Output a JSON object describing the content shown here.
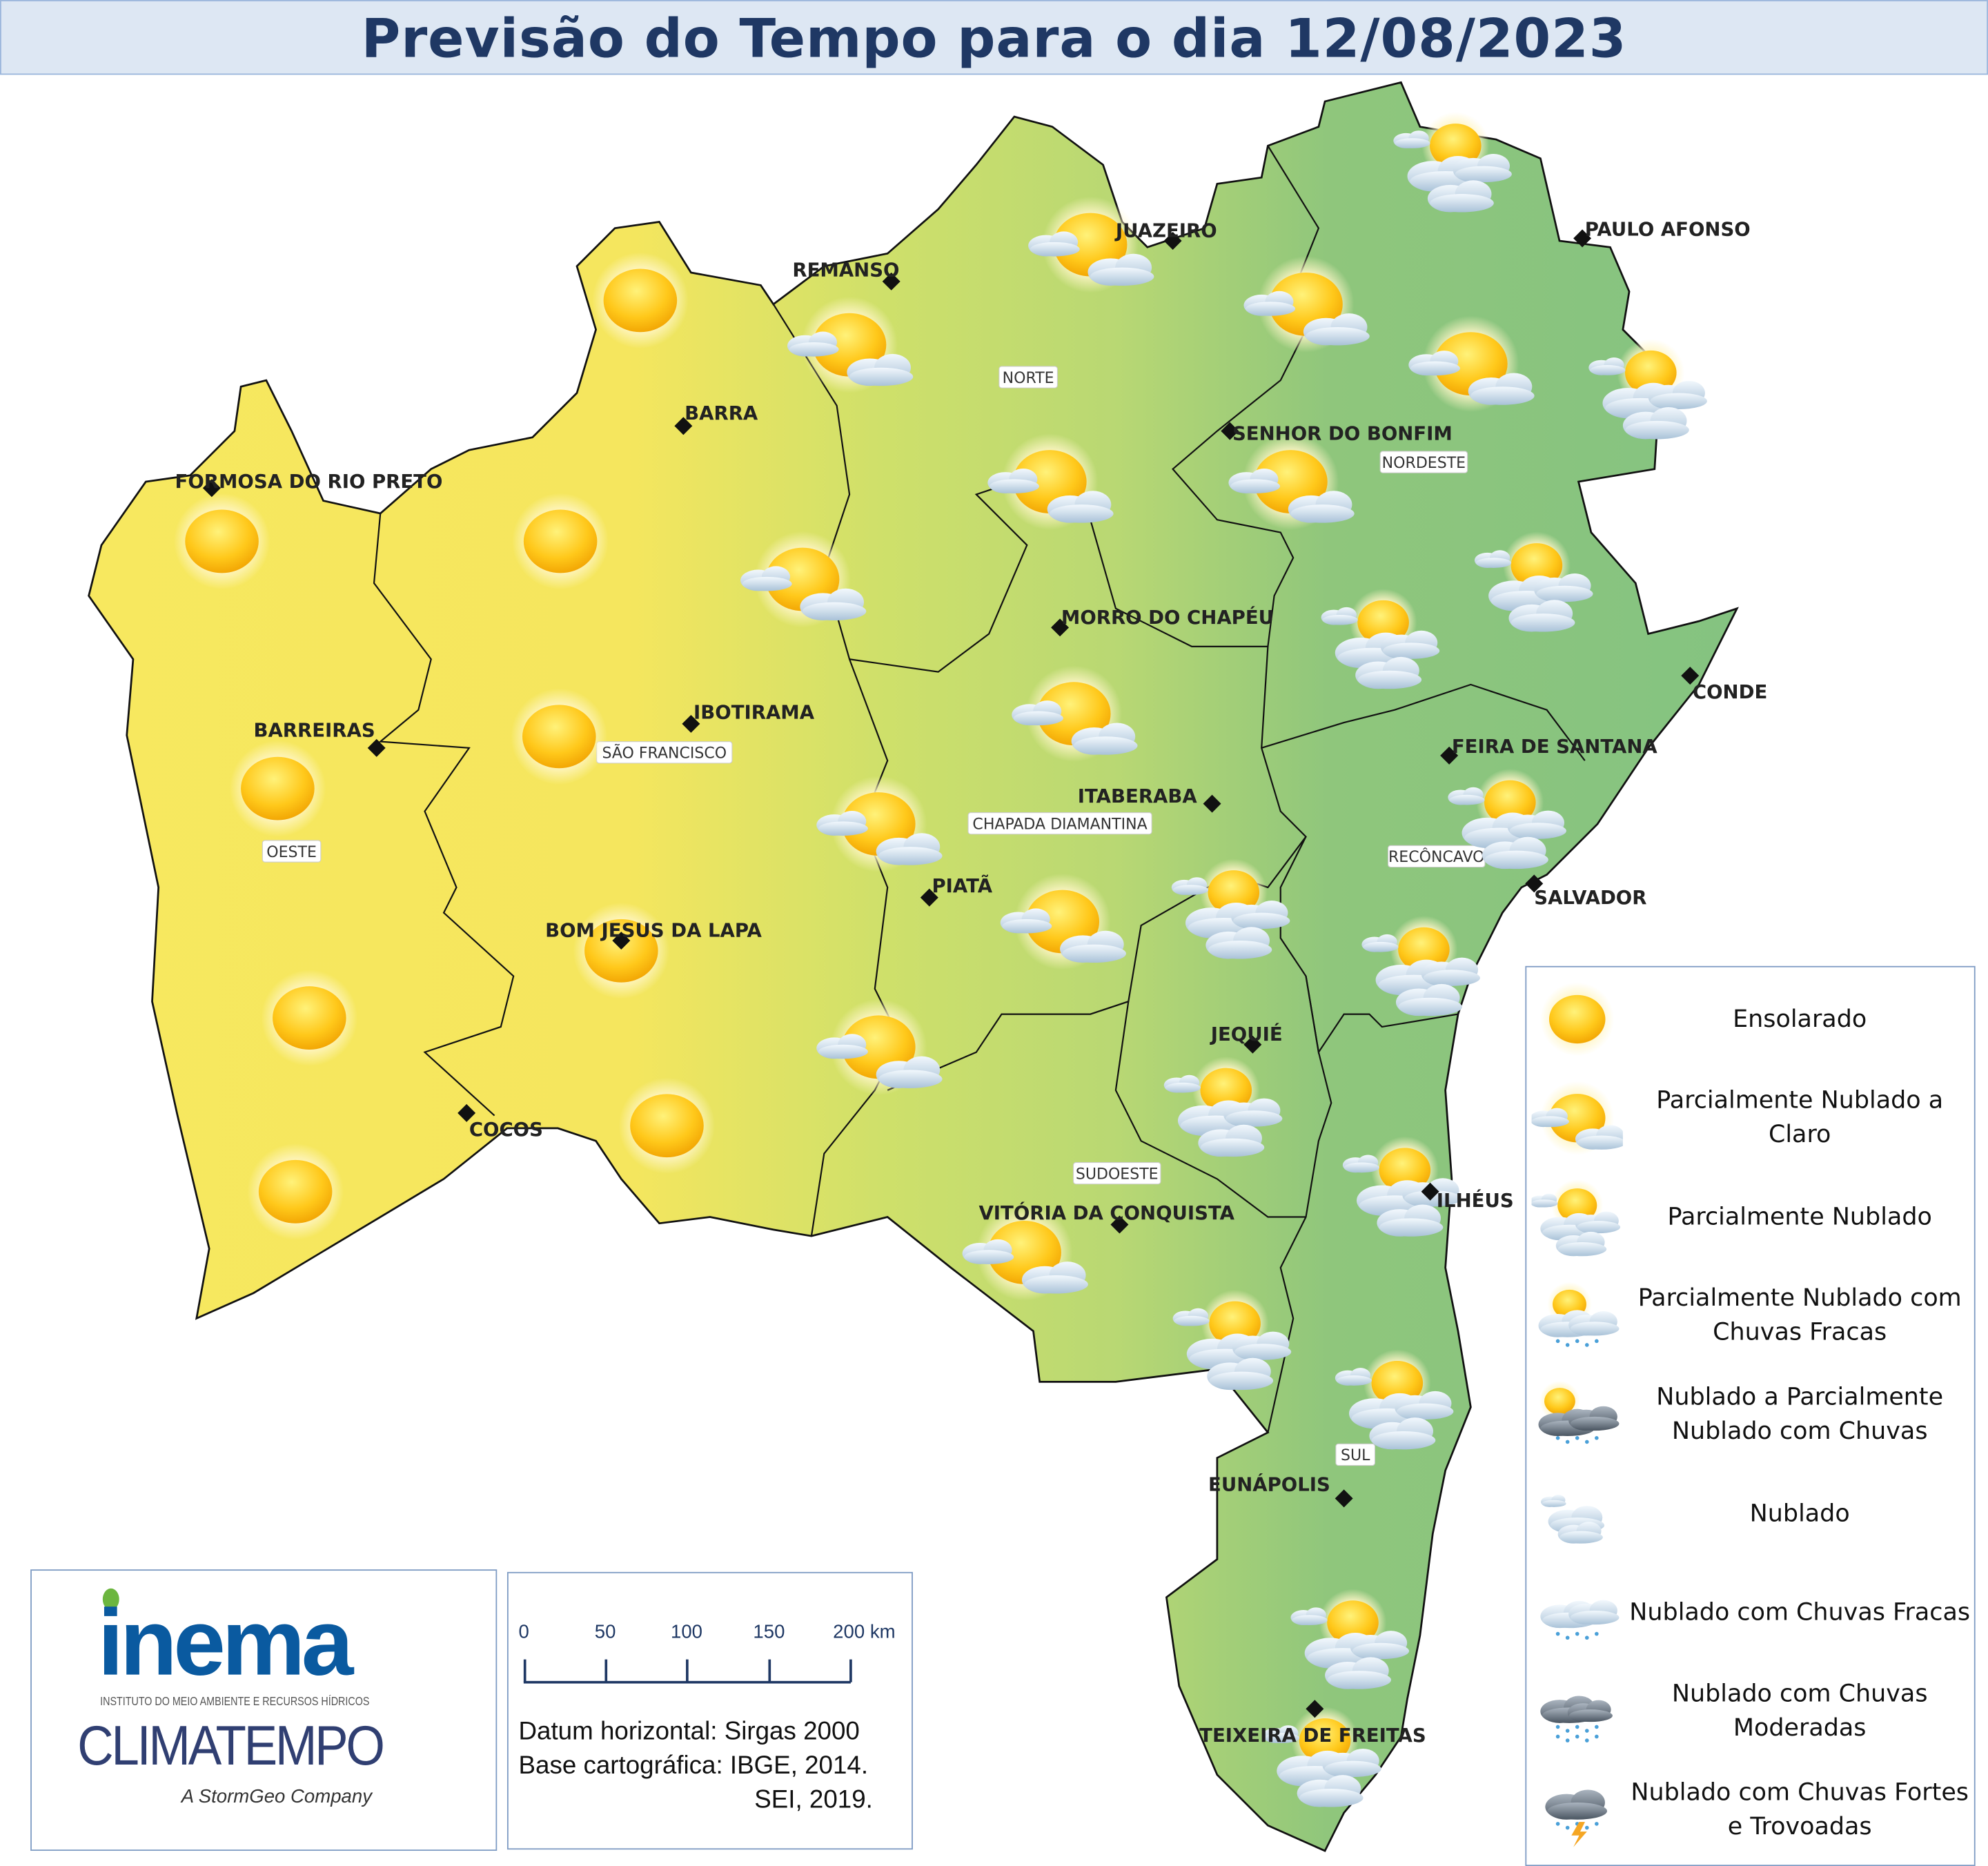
{
  "title": "Previsão do Tempo para o dia 12/08/2023",
  "colors": {
    "title": "#1f3864",
    "west": "#f7e85f",
    "center": "#c8de6c",
    "east": "#86c47f"
  },
  "cities": [
    "JUAZEIRO",
    "REMANSO",
    "PAULO AFONSO",
    "BARRA",
    "SENHOR DO BONFIM",
    "FORMOSA DO RIO PRETO",
    "MORRO DO CHAPÉU",
    "CONDE",
    "BARREIRAS",
    "IBOTIRAMA",
    "FEIRA DE SANTANA",
    "ITABERABA",
    "SALVADOR",
    "PIATÃ",
    "BOM JESUS DA LAPA",
    "JEQUIÉ",
    "COCOS",
    "ILHÉUS",
    "VITÓRIA DA CONQUISTA",
    "EUNÁPOLIS",
    "TEIXEIRA DE FREITAS"
  ],
  "regions": [
    "NORTE",
    "NORDESTE",
    "SÃO FRANCISCO",
    "OESTE",
    "CHAPADA DIAMANTINA",
    "RECÔNCAVO",
    "SUDOESTE",
    "SUL"
  ],
  "forecast_icons": [
    "ensolarado",
    "ensolarado",
    "ensolarado",
    "ensolarado",
    "ensolarado",
    "ensolarado",
    "ensolarado",
    "ensolarado",
    "ensolarado",
    "parcialmente-nublado-a-claro",
    "parcialmente-nublado-a-claro",
    "parcialmente-nublado-a-claro",
    "parcialmente-nublado-a-claro",
    "parcialmente-nublado-a-claro",
    "parcialmente-nublado-a-claro",
    "parcialmente-nublado-a-claro",
    "parcialmente-nublado-a-claro",
    "parcialmente-nublado-a-claro",
    "parcialmente-nublado-a-claro",
    "parcialmente-nublado-a-claro",
    "parcialmente-nublado-a-claro",
    "parcialmente-nublado",
    "parcialmente-nublado",
    "parcialmente-nublado",
    "parcialmente-nublado",
    "parcialmente-nublado",
    "parcialmente-nublado",
    "parcialmente-nublado",
    "parcialmente-nublado",
    "parcialmente-nublado",
    "parcialmente-nublado",
    "parcialmente-nublado",
    "parcialmente-nublado",
    "parcialmente-nublado"
  ],
  "legend": [
    {
      "icon": "ensolarado",
      "label": "Ensolarado"
    },
    {
      "icon": "parcialmente-nublado-a-claro",
      "label": "Parcialmente Nublado a Claro"
    },
    {
      "icon": "parcialmente-nublado",
      "label": "Parcialmente Nublado"
    },
    {
      "icon": "parcialmente-nublado-chuvas-fracas",
      "label": "Parcialmente Nublado com Chuvas Fracas"
    },
    {
      "icon": "nublado-a-parcialmente-nublado-chuvas",
      "label": "Nublado a Parcialmente Nublado com Chuvas"
    },
    {
      "icon": "nublado",
      "label": "Nublado"
    },
    {
      "icon": "nublado-chuvas-fracas",
      "label": "Nublado com Chuvas Fracas"
    },
    {
      "icon": "nublado-chuvas-moderadas",
      "label": "Nublado com Chuvas Moderadas"
    },
    {
      "icon": "nublado-chuvas-fortes-trovoadas",
      "label": "Nublado com Chuvas Fortes e Trovoadas"
    }
  ],
  "logos": {
    "inema": "inema",
    "inema_sub": "INSTITUTO DO MEIO AMBIENTE E RECURSOS HÍDRICOS",
    "climatempo": "CLIMATEMPO",
    "climatempo_sub": "A StormGeo Company"
  },
  "scale_bar": {
    "ticks": [
      "0",
      "50",
      "100",
      "150",
      "200 km"
    ]
  },
  "credits": {
    "line1": "Datum horizontal: Sirgas 2000",
    "line2": "Base cartográfica: IBGE, 2014.",
    "line3": "SEI, 2019."
  }
}
